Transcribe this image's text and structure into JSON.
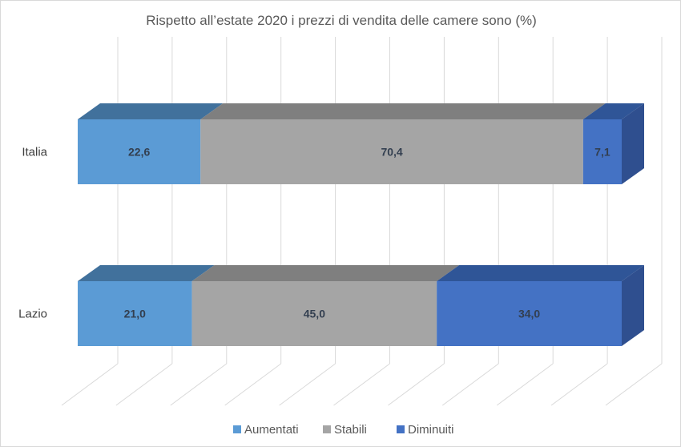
{
  "chart_data": {
    "type": "bar",
    "orientation": "horizontal-stacked-100-3d",
    "title": "Rispetto all’estate 2020 i prezzi di vendita delle camere sono (%)",
    "categories": [
      "Italia",
      "Lazio"
    ],
    "series": [
      {
        "name": "Aumentati",
        "values": [
          22.6,
          21.0
        ],
        "labels": [
          "22,6",
          "21,0"
        ],
        "color": "#5b9bd5",
        "top": "#41719c",
        "side": "#41719c"
      },
      {
        "name": "Stabili",
        "values": [
          70.4,
          45.0
        ],
        "labels": [
          "70,4",
          "45,0"
        ],
        "color": "#a5a5a5",
        "top": "#7f7f7f",
        "side": "#7f7f7f"
      },
      {
        "name": "Diminuiti",
        "values": [
          7.1,
          34.0
        ],
        "labels": [
          "7,1",
          "34,0"
        ],
        "color": "#4472c4",
        "top": "#2f5597",
        "side": "#2f4f8f"
      }
    ],
    "xlim": [
      0,
      100
    ],
    "grid": true,
    "legend": "bottom"
  }
}
